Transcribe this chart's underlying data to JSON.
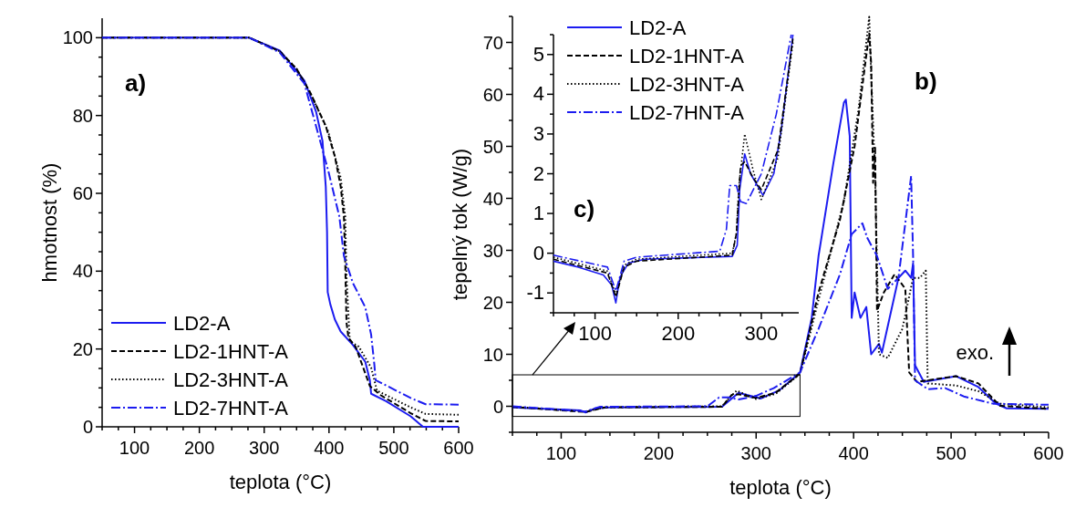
{
  "chart_data": [
    {
      "type": "line",
      "title": "a)",
      "xlabel": "teplota (°C)",
      "ylabel": "hmotnost (%)",
      "xlim": [
        50,
        600
      ],
      "ylim": [
        0,
        105
      ],
      "legend": "bottom left",
      "xticks": [
        {
          "value": 50,
          "label": null
        },
        {
          "value": 75,
          "label": null
        },
        100,
        {
          "value": 125,
          "label": null
        },
        {
          "value": 150,
          "label": null
        },
        {
          "value": 175,
          "label": null
        },
        200,
        {
          "value": 225,
          "label": null
        },
        {
          "value": 250,
          "label": null
        },
        {
          "value": 275,
          "label": null
        },
        300,
        {
          "value": 325,
          "label": null
        },
        {
          "value": 350,
          "label": null
        },
        {
          "value": 375,
          "label": null
        },
        400,
        {
          "value": 425,
          "label": null
        },
        {
          "value": 450,
          "label": null
        },
        {
          "value": 475,
          "label": null
        },
        500,
        {
          "value": 525,
          "label": null
        },
        {
          "value": 550,
          "label": null
        },
        {
          "value": 575,
          "label": null
        },
        600
      ],
      "yticks": [
        0,
        {
          "value": 5,
          "label": null
        },
        {
          "value": 10,
          "label": null
        },
        {
          "value": 15,
          "label": null
        },
        20,
        {
          "value": 25,
          "label": null
        },
        {
          "value": 30,
          "label": null
        },
        {
          "value": 35,
          "label": null
        },
        40,
        {
          "value": 45,
          "label": null
        },
        {
          "value": 50,
          "label": null
        },
        {
          "value": 55,
          "label": null
        },
        60,
        {
          "value": 65,
          "label": null
        },
        {
          "value": 70,
          "label": null
        },
        {
          "value": 75,
          "label": null
        },
        80,
        {
          "value": 85,
          "label": null
        },
        {
          "value": 90,
          "label": null
        },
        {
          "value": 95,
          "label": null
        },
        100
      ],
      "series": [
        {
          "name": "LD2-A",
          "color": "#1c1cf0",
          "line_style": "solid",
          "x": [
            50,
            277,
            324,
            362,
            380,
            390,
            395,
            397,
            398,
            402,
            409,
            418,
            437,
            456,
            463,
            465,
            488,
            526,
            545,
            600
          ],
          "values": [
            100,
            100,
            96.7,
            89,
            81,
            73.4,
            61.8,
            50,
            34.6,
            31.5,
            27.6,
            24.5,
            21,
            16.7,
            12,
            8.5,
            6.6,
            2.7,
            0,
            0
          ]
        },
        {
          "name": "LD2-1HNT-A",
          "color": "#000000",
          "line_style": "dashed",
          "x": [
            50,
            277,
            324,
            350,
            371,
            395,
            409,
            418,
            423,
            425,
            427,
            430,
            441,
            463,
            479,
            526,
            549,
            600
          ],
          "values": [
            100,
            100,
            96.5,
            92,
            85.9,
            77.3,
            69.5,
            61.8,
            54,
            42.3,
            26.8,
            22.9,
            20.6,
            10.5,
            8.2,
            3.5,
            1.5,
            1.4
          ]
        },
        {
          "name": "LD2-3HNT-A",
          "color": "#000000",
          "line_style": "dotted",
          "x": [
            50,
            277,
            324,
            350,
            371,
            399,
            418,
            425,
            427,
            432,
            446,
            465,
            474,
            526,
            549,
            600
          ],
          "values": [
            100,
            100,
            96.5,
            92,
            85.9,
            75.8,
            64,
            54,
            38.5,
            22,
            20.6,
            15.2,
            9.3,
            5,
            3.3,
            3.1
          ]
        },
        {
          "name": "LD2-7HNT-A",
          "color": "#1c1cf0",
          "line_style": "dashdot",
          "x": [
            50,
            277,
            324,
            362,
            380,
            399,
            416,
            423,
            437,
            456,
            465,
            470,
            472,
            526,
            549,
            600
          ],
          "values": [
            100,
            100,
            96.2,
            88.2,
            77.3,
            65.7,
            54,
            43.9,
            36.9,
            30.7,
            23.7,
            15.9,
            12,
            7.4,
            5.8,
            5.7
          ]
        }
      ]
    },
    {
      "type": "line",
      "title": "b)",
      "xlabel": "teplota (°C)",
      "ylabel": "tepelný tok (W/g)",
      "xlim": [
        50,
        600
      ],
      "ylim": [
        -5,
        75
      ],
      "legend": "top left",
      "annotations": [
        "exo."
      ],
      "xticks": [
        {
          "value": 50,
          "label": null
        },
        {
          "value": 75,
          "label": null
        },
        100,
        {
          "value": 125,
          "label": null
        },
        {
          "value": 150,
          "label": null
        },
        {
          "value": 175,
          "label": null
        },
        200,
        {
          "value": 225,
          "label": null
        },
        {
          "value": 250,
          "label": null
        },
        {
          "value": 275,
          "label": null
        },
        300,
        {
          "value": 325,
          "label": null
        },
        {
          "value": 350,
          "label": null
        },
        {
          "value": 375,
          "label": null
        },
        400,
        {
          "value": 425,
          "label": null
        },
        {
          "value": 450,
          "label": null
        },
        {
          "value": 475,
          "label": null
        },
        500,
        {
          "value": 525,
          "label": null
        },
        {
          "value": 550,
          "label": null
        },
        {
          "value": 575,
          "label": null
        },
        600
      ],
      "yticks": [
        {
          "value": -5,
          "label": null
        },
        0,
        {
          "value": 5,
          "label": null
        },
        10,
        {
          "value": 15,
          "label": null
        },
        20,
        {
          "value": 25,
          "label": null
        },
        30,
        {
          "value": 35,
          "label": null
        },
        40,
        {
          "value": 45,
          "label": null
        },
        50,
        {
          "value": 55,
          "label": null
        },
        60,
        {
          "value": 65,
          "label": null
        },
        70,
        {
          "value": 75,
          "label": null
        }
      ],
      "series": [
        {
          "name": "LD2-A",
          "color": "#1c1cf0",
          "line_style": "solid",
          "x": [
            50,
            120,
            125,
            135,
            150,
            265,
            275,
            282,
            305,
            324,
            345,
            357,
            364,
            379,
            390,
            392,
            396,
            398,
            401,
            407,
            413,
            418,
            426,
            429,
            446,
            453,
            459,
            461,
            463,
            472,
            505,
            528,
            546,
            557,
            600
          ],
          "values": [
            -0.2,
            -0.8,
            -1.2,
            -0.4,
            -0.2,
            -0.1,
            1.5,
            2.6,
            1.5,
            3.1,
            6.5,
            17,
            28.9,
            46.5,
            58.4,
            59,
            52,
            17,
            21.9,
            17,
            19.1,
            10,
            12,
            10.3,
            24.7,
            26.1,
            24.7,
            27.5,
            7.9,
            4.7,
            5.8,
            3.7,
            0.5,
            -0.4,
            -0.5
          ]
        },
        {
          "name": "LD2-1HNT-A",
          "color": "#000000",
          "line_style": "dashed",
          "x": [
            50,
            125,
            145,
            265,
            275,
            282,
            300,
            320,
            345,
            364,
            386,
            401,
            413,
            416,
            418,
            420,
            422,
            424,
            431,
            442,
            453,
            457,
            465,
            505,
            528,
            550,
            600
          ],
          "values": [
            -0.1,
            -1.1,
            -0.2,
            -0.1,
            2.2,
            2.3,
            1.6,
            2.6,
            6.3,
            21.9,
            35.9,
            50,
            67.5,
            71.7,
            66,
            43,
            50,
            18.4,
            21.9,
            25.4,
            22.6,
            6.5,
            4.7,
            5.8,
            4.4,
            0.1,
            -0.5
          ]
        },
        {
          "name": "LD2-3HNT-A",
          "color": "#000000",
          "line_style": "dotted",
          "x": [
            50,
            125,
            145,
            265,
            273,
            280,
            300,
            320,
            345,
            364,
            390,
            405,
            416,
            418,
            422,
            426,
            435,
            450,
            461,
            468,
            474,
            476,
            505,
            528,
            550,
            600
          ],
          "values": [
            -0.1,
            -1,
            -0.2,
            0,
            1.7,
            3,
            1.4,
            2.4,
            6.2,
            20.5,
            39.4,
            57,
            74.9,
            64,
            44.3,
            10,
            9.3,
            14.9,
            24.7,
            24.7,
            26.1,
            4.4,
            4,
            2.9,
            0.5,
            -0.2
          ]
        },
        {
          "name": "LD2-7HNT-A",
          "color": "#1c1cf0",
          "line_style": "dashdot",
          "x": [
            50,
            125,
            140,
            250,
            262,
            272,
            282,
            300,
            318,
            345,
            364,
            386,
            398,
            409,
            414,
            424,
            435,
            446,
            459,
            461,
            463,
            476,
            494,
            513,
            543,
            600
          ],
          "values": [
            0,
            -1,
            -0.1,
            0,
            1.7,
            1.7,
            1.3,
            2,
            3.5,
            6.5,
            14.9,
            25.4,
            33.1,
            35.2,
            32.4,
            28.9,
            22.6,
            24.7,
            44.3,
            28.9,
            5,
            3.3,
            3.5,
            1.9,
            0.5,
            0.3
          ]
        }
      ]
    },
    {
      "type": "line",
      "title": "c)",
      "xlim": [
        50,
        345
      ],
      "ylim": [
        -1.5,
        5.5
      ],
      "xticks": [
        {
          "value": 50,
          "label": null
        },
        {
          "value": 75,
          "label": null
        },
        100,
        {
          "value": 125,
          "label": null
        },
        {
          "value": 150,
          "label": null
        },
        {
          "value": 175,
          "label": null
        },
        200,
        {
          "value": 225,
          "label": null
        },
        {
          "value": 250,
          "label": null
        },
        {
          "value": 275,
          "label": null
        },
        300,
        {
          "value": 325,
          "label": null
        }
      ],
      "yticks": [
        {
          "value": -1.5,
          "label": null
        },
        -1,
        {
          "value": -0.5,
          "label": null
        },
        0,
        {
          "value": 0.5,
          "label": null
        },
        1,
        {
          "value": 1.5,
          "label": null
        },
        2,
        {
          "value": 2.5,
          "label": null
        },
        3,
        {
          "value": 3.5,
          "label": null
        },
        4,
        {
          "value": 4.5,
          "label": null
        },
        5,
        {
          "value": 5.5,
          "label": null
        }
      ],
      "series": [
        {
          "color": "#1c1cf0",
          "line_style": "solid",
          "x": [
            50,
            80,
            110,
            120,
            125,
            130,
            140,
            160,
            265,
            271,
            274,
            280,
            287,
            302,
            315,
            324,
            338
          ],
          "values": [
            -0.2,
            -0.35,
            -0.55,
            -0.8,
            -1.25,
            -0.6,
            -0.25,
            -0.15,
            -0.08,
            0.2,
            1.6,
            2.5,
            2,
            1.46,
            2,
            3.1,
            5.5
          ]
        },
        {
          "color": "#000000",
          "line_style": "dashed",
          "x": [
            50,
            115,
            125,
            135,
            150,
            265,
            270,
            275,
            280,
            290,
            300,
            320,
            338
          ],
          "values": [
            -0.15,
            -0.5,
            -1.1,
            -0.35,
            -0.2,
            -0.05,
            0.5,
            2.2,
            2.3,
            1.9,
            1.6,
            2.6,
            5.4
          ]
        },
        {
          "color": "#000000",
          "line_style": "dotted",
          "x": [
            50,
            115,
            125,
            135,
            150,
            265,
            270,
            273,
            280,
            290,
            300,
            320,
            338
          ],
          "values": [
            -0.1,
            -0.45,
            -1.05,
            -0.3,
            -0.15,
            0,
            0.5,
            1.7,
            3,
            2.1,
            1.35,
            2.4,
            5.3
          ]
        },
        {
          "color": "#1c1cf0",
          "line_style": "dashdot",
          "x": [
            50,
            115,
            125,
            135,
            150,
            250,
            258,
            262,
            270,
            275,
            282,
            300,
            318,
            336
          ],
          "values": [
            -0.05,
            -0.35,
            -0.95,
            -0.2,
            -0.1,
            0.05,
            0.6,
            1.7,
            1.7,
            1.3,
            1.25,
            2,
            3.5,
            5.5
          ]
        }
      ]
    }
  ]
}
